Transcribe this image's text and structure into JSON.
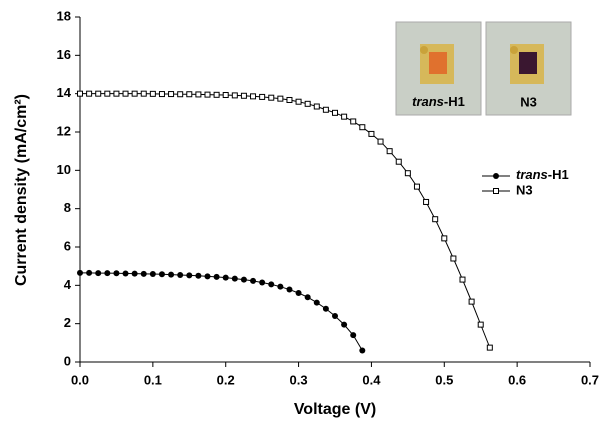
{
  "chart_data": {
    "type": "line",
    "xlabel": "Voltage (V)",
    "ylabel": "Current density (mA/cm²)",
    "xlim": [
      0,
      0.7
    ],
    "ylim": [
      0,
      18
    ],
    "xticks": [
      {
        "value": 0,
        "label": "0.0"
      },
      0.1,
      0.2,
      0.3,
      0.4,
      0.5,
      0.6,
      0.7
    ],
    "yticks": [
      0,
      2,
      4,
      6,
      8,
      10,
      12,
      14,
      16,
      18
    ],
    "legend": "upper right",
    "insets": [
      {
        "label": "trans-H1",
        "color": "#e0712e"
      },
      {
        "label": "N3",
        "color": "#3a1730"
      }
    ],
    "series": [
      {
        "name": "trans-H1",
        "color": "#000",
        "marker": "filled-circle",
        "x": [
          0,
          0.0125,
          0.025,
          0.0375,
          0.05,
          0.0625,
          0.075,
          0.0875,
          0.1,
          0.1125,
          0.125,
          0.1375,
          0.15,
          0.1625,
          0.175,
          0.1875,
          0.2,
          0.2125,
          0.225,
          0.2375,
          0.25,
          0.2625,
          0.275,
          0.2875,
          0.3,
          0.3125,
          0.325,
          0.3375,
          0.35,
          0.3625,
          0.375,
          0.3875
        ],
        "values": [
          4.65,
          4.65,
          4.64,
          4.64,
          4.63,
          4.62,
          4.61,
          4.6,
          4.59,
          4.58,
          4.56,
          4.54,
          4.52,
          4.5,
          4.47,
          4.44,
          4.4,
          4.35,
          4.3,
          4.23,
          4.15,
          4.05,
          3.93,
          3.78,
          3.6,
          3.38,
          3.1,
          2.78,
          2.4,
          1.95,
          1.4,
          0.6
        ]
      },
      {
        "name": "N3",
        "color": "#000",
        "marker": "open-square",
        "x": [
          0,
          0.0125,
          0.025,
          0.0375,
          0.05,
          0.0625,
          0.075,
          0.0875,
          0.1,
          0.1125,
          0.125,
          0.1375,
          0.15,
          0.1625,
          0.175,
          0.1875,
          0.2,
          0.2125,
          0.225,
          0.2375,
          0.25,
          0.2625,
          0.275,
          0.2875,
          0.3,
          0.3125,
          0.325,
          0.3375,
          0.35,
          0.3625,
          0.375,
          0.3875,
          0.4,
          0.4125,
          0.425,
          0.4375,
          0.45,
          0.4625,
          0.475,
          0.4875,
          0.5,
          0.5125,
          0.525,
          0.5375,
          0.55,
          0.5625
        ],
        "values": [
          14.0,
          14.0,
          14.0,
          14.0,
          14.0,
          14.0,
          14.0,
          14.0,
          13.99,
          13.98,
          13.98,
          13.97,
          13.97,
          13.96,
          13.95,
          13.94,
          13.93,
          13.91,
          13.89,
          13.86,
          13.83,
          13.79,
          13.74,
          13.67,
          13.58,
          13.47,
          13.33,
          13.16,
          13.0,
          12.8,
          12.55,
          12.25,
          11.9,
          11.5,
          11.0,
          10.45,
          9.85,
          9.15,
          8.35,
          7.45,
          6.45,
          5.4,
          4.3,
          3.15,
          1.95,
          0.75
        ]
      }
    ]
  }
}
